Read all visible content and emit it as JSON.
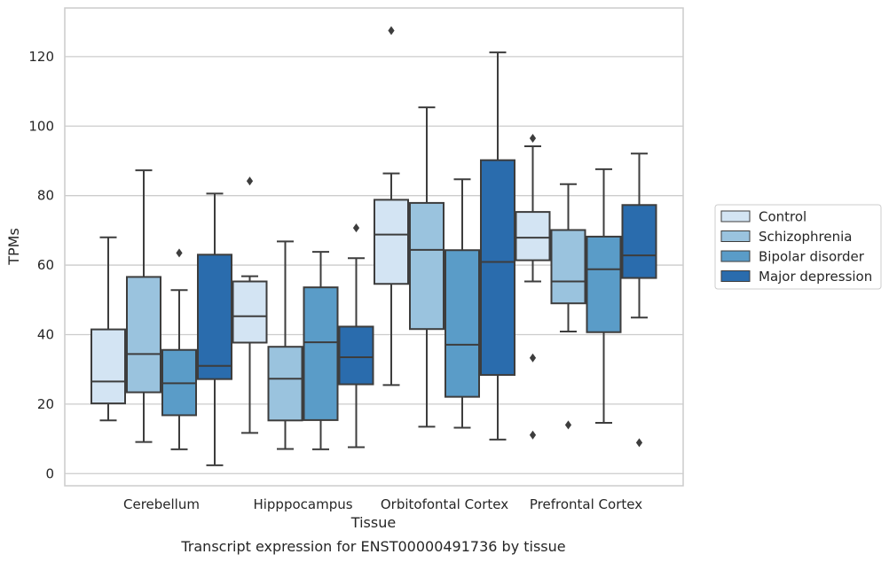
{
  "caption": "Transcript expression for ENST00000491736 by tissue",
  "chart_data": {
    "type": "box",
    "xlabel": "Tissue",
    "ylabel": "TPMs",
    "ylim": [
      -3.5,
      134
    ],
    "y_ticks": [
      0,
      20,
      40,
      60,
      80,
      100,
      120
    ],
    "grid": "horizontal",
    "legend_placement": "right-center",
    "categories": [
      "Cerebellum",
      "Hipppocampus",
      "Orbitofontal Cortex",
      "Prefrontal Cortex"
    ],
    "series": [
      {
        "name": "Control",
        "color": "#d3e4f3",
        "boxes": [
          {
            "whisker_low": 15.3,
            "q1": 20.2,
            "median": 26.5,
            "q3": 41.5,
            "whisker_high": 68.0,
            "outliers": []
          },
          {
            "whisker_low": 11.7,
            "q1": 37.7,
            "median": 45.3,
            "q3": 55.3,
            "whisker_high": 56.8,
            "outliers": [
              84.2
            ]
          },
          {
            "whisker_low": 25.5,
            "q1": 54.6,
            "median": 68.8,
            "q3": 78.8,
            "whisker_high": 86.4,
            "outliers": [
              127.5
            ]
          },
          {
            "whisker_low": 55.3,
            "q1": 61.4,
            "median": 67.9,
            "q3": 75.3,
            "whisker_high": 94.2,
            "outliers": [
              96.5,
              33.3,
              11.1
            ]
          }
        ]
      },
      {
        "name": "Schizophrenia",
        "color": "#9ac3de",
        "boxes": [
          {
            "whisker_low": 9.1,
            "q1": 23.4,
            "median": 34.4,
            "q3": 56.6,
            "whisker_high": 87.3,
            "outliers": []
          },
          {
            "whisker_low": 7.1,
            "q1": 15.3,
            "median": 27.3,
            "q3": 36.5,
            "whisker_high": 66.8,
            "outliers": []
          },
          {
            "whisker_low": 13.5,
            "q1": 41.6,
            "median": 64.4,
            "q3": 77.9,
            "whisker_high": 105.4,
            "outliers": []
          },
          {
            "whisker_low": 40.9,
            "q1": 49.0,
            "median": 55.3,
            "q3": 70.1,
            "whisker_high": 83.3,
            "outliers": [
              14.0
            ]
          }
        ]
      },
      {
        "name": "Bipolar disorder",
        "color": "#5a9cc8",
        "boxes": [
          {
            "whisker_low": 7.0,
            "q1": 16.8,
            "median": 26.0,
            "q3": 35.6,
            "whisker_high": 52.8,
            "outliers": [
              63.5
            ]
          },
          {
            "whisker_low": 7.0,
            "q1": 15.4,
            "median": 37.8,
            "q3": 53.6,
            "whisker_high": 63.8,
            "outliers": []
          },
          {
            "whisker_low": 13.2,
            "q1": 22.1,
            "median": 37.1,
            "q3": 64.3,
            "whisker_high": 84.7,
            "outliers": []
          },
          {
            "whisker_low": 14.6,
            "q1": 40.7,
            "median": 58.8,
            "q3": 68.2,
            "whisker_high": 87.6,
            "outliers": []
          }
        ]
      },
      {
        "name": "Major depression",
        "color": "#2a6cad",
        "boxes": [
          {
            "whisker_low": 2.4,
            "q1": 27.2,
            "median": 31.0,
            "q3": 63.0,
            "whisker_high": 80.6,
            "outliers": []
          },
          {
            "whisker_low": 7.6,
            "q1": 25.7,
            "median": 33.5,
            "q3": 42.3,
            "whisker_high": 62.0,
            "outliers": [
              70.7
            ]
          },
          {
            "whisker_low": 9.8,
            "q1": 28.4,
            "median": 60.9,
            "q3": 90.2,
            "whisker_high": 121.2,
            "outliers": []
          },
          {
            "whisker_low": 44.9,
            "q1": 56.3,
            "median": 62.8,
            "q3": 77.3,
            "whisker_high": 92.1,
            "outliers": [
              8.9
            ]
          }
        ]
      }
    ]
  }
}
